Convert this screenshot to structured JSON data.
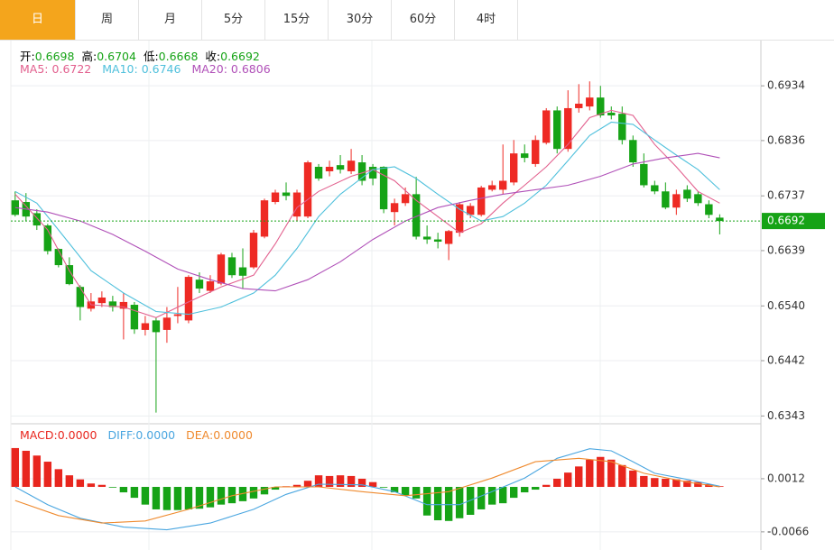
{
  "tabs": [
    "日",
    "周",
    "月",
    "5分",
    "15分",
    "30分",
    "60分",
    "4时"
  ],
  "active_tab": 0,
  "chart_data": [
    {
      "type": "candlestick",
      "info": [
        {
          "label": "开:",
          "value": 0.6698
        },
        {
          "label": "高:",
          "value": 0.6704
        },
        {
          "label": "低:",
          "value": 0.6668
        },
        {
          "label": "收:",
          "value": 0.6692
        }
      ],
      "info_color": "#16a316",
      "up_color": "#ee2a24",
      "down_color": "#16a316",
      "open": [
        0.6729,
        0.6726,
        0.6706,
        0.6684,
        0.6642,
        0.6613,
        0.6574,
        0.6535,
        0.6545,
        0.6548,
        0.6535,
        0.6542,
        0.6497,
        0.6514,
        0.6497,
        0.6522,
        0.6514,
        0.6587,
        0.6567,
        0.658,
        0.6627,
        0.6609,
        0.6609,
        0.6664,
        0.6726,
        0.6743,
        0.67,
        0.67,
        0.6789,
        0.6781,
        0.6792,
        0.6781,
        0.6797,
        0.6789,
        0.6789,
        0.6708,
        0.6724,
        0.674,
        0.6664,
        0.6659,
        0.6651,
        0.6671,
        0.6703,
        0.6703,
        0.6748,
        0.6748,
        0.6761,
        0.6813,
        0.6794,
        0.6832,
        0.689,
        0.6821,
        0.6894,
        0.6897,
        0.6913,
        0.6886,
        0.6884,
        0.6837,
        0.6794,
        0.6756,
        0.6745,
        0.6716,
        0.6748,
        0.674,
        0.6722,
        0.6698
      ],
      "high": [
        0.6745,
        0.6742,
        0.6713,
        0.6687,
        0.6643,
        0.6627,
        0.6577,
        0.6563,
        0.6566,
        0.6558,
        0.6563,
        0.6547,
        0.6522,
        0.6519,
        0.6538,
        0.6574,
        0.6595,
        0.66,
        0.6595,
        0.6635,
        0.6635,
        0.6643,
        0.6676,
        0.6732,
        0.6748,
        0.6761,
        0.6748,
        0.68,
        0.6794,
        0.68,
        0.681,
        0.6821,
        0.681,
        0.6794,
        0.679,
        0.6732,
        0.6752,
        0.6771,
        0.6684,
        0.6671,
        0.6676,
        0.6726,
        0.6724,
        0.6755,
        0.6764,
        0.6829,
        0.6837,
        0.6829,
        0.6845,
        0.6894,
        0.6897,
        0.6926,
        0.6937,
        0.6942,
        0.6934,
        0.6897,
        0.6897,
        0.6845,
        0.6813,
        0.6764,
        0.6761,
        0.6748,
        0.6756,
        0.6745,
        0.6729,
        0.6704
      ],
      "low": [
        0.67,
        0.6692,
        0.6676,
        0.6632,
        0.6609,
        0.6577,
        0.6514,
        0.653,
        0.6538,
        0.653,
        0.648,
        0.649,
        0.6487,
        0.6349,
        0.6474,
        0.6509,
        0.6509,
        0.6563,
        0.6563,
        0.6577,
        0.659,
        0.6571,
        0.6606,
        0.6661,
        0.6722,
        0.6729,
        0.6692,
        0.6697,
        0.6764,
        0.6772,
        0.6777,
        0.6776,
        0.6756,
        0.6756,
        0.6706,
        0.6684,
        0.6719,
        0.6659,
        0.6651,
        0.6643,
        0.6622,
        0.6664,
        0.6697,
        0.67,
        0.6745,
        0.674,
        0.6756,
        0.6797,
        0.6789,
        0.6829,
        0.6813,
        0.6816,
        0.6886,
        0.689,
        0.6877,
        0.6874,
        0.6829,
        0.6789,
        0.6752,
        0.674,
        0.6713,
        0.6703,
        0.6726,
        0.6719,
        0.6697,
        0.6668
      ],
      "close": [
        0.6703,
        0.67,
        0.6684,
        0.6638,
        0.6613,
        0.6579,
        0.6538,
        0.6548,
        0.6555,
        0.6538,
        0.6547,
        0.6498,
        0.6509,
        0.6493,
        0.6519,
        0.6525,
        0.6592,
        0.6571,
        0.6584,
        0.6632,
        0.6595,
        0.6594,
        0.6671,
        0.6729,
        0.6743,
        0.6737,
        0.6743,
        0.6797,
        0.6768,
        0.6789,
        0.6784,
        0.68,
        0.6764,
        0.6768,
        0.6713,
        0.6724,
        0.674,
        0.6664,
        0.6659,
        0.6655,
        0.6674,
        0.6722,
        0.6719,
        0.6752,
        0.6756,
        0.6764,
        0.6813,
        0.6805,
        0.6837,
        0.689,
        0.6821,
        0.6894,
        0.6902,
        0.6913,
        0.6881,
        0.6881,
        0.6837,
        0.6797,
        0.6756,
        0.6745,
        0.6716,
        0.674,
        0.6732,
        0.6724,
        0.6703,
        0.6692
      ],
      "series": [
        {
          "name": "MA5:",
          "label_value": 0.6722,
          "color": "#e2608e",
          "x": [
            0,
            3,
            5,
            7,
            10,
            13,
            16,
            19,
            22,
            24,
            26,
            28,
            31,
            33,
            35,
            37,
            39,
            41,
            43,
            45,
            47,
            49,
            51,
            53,
            55,
            57,
            59,
            61,
            63,
            65
          ],
          "values": [
            0.674,
            0.6676,
            0.6603,
            0.6542,
            0.6538,
            0.6519,
            0.6547,
            0.6574,
            0.6595,
            0.6651,
            0.6716,
            0.6745,
            0.6772,
            0.6784,
            0.6764,
            0.6729,
            0.67,
            0.6671,
            0.6687,
            0.6724,
            0.6756,
            0.6789,
            0.6829,
            0.6877,
            0.689,
            0.6881,
            0.6829,
            0.6789,
            0.6745,
            0.6724
          ]
        },
        {
          "name": "MA10:",
          "label_value": 0.6746,
          "color": "#4fc0dc",
          "x": [
            0,
            2,
            4,
            7,
            10,
            13,
            16,
            19,
            22,
            24,
            26,
            28,
            30,
            33,
            35,
            37,
            39,
            41,
            43,
            45,
            47,
            49,
            51,
            53,
            55,
            57,
            59,
            61,
            63,
            65
          ],
          "values": [
            0.6745,
            0.6724,
            0.6676,
            0.6603,
            0.6563,
            0.653,
            0.6525,
            0.6538,
            0.6563,
            0.6595,
            0.6643,
            0.67,
            0.674,
            0.6784,
            0.6789,
            0.6768,
            0.674,
            0.6713,
            0.6692,
            0.67,
            0.6724,
            0.6756,
            0.68,
            0.6845,
            0.6869,
            0.6865,
            0.6837,
            0.681,
            0.6784,
            0.6748
          ]
        },
        {
          "name": "MA20:",
          "label_value": 0.6806,
          "color": "#b050b8",
          "x": [
            0,
            3,
            6,
            9,
            12,
            15,
            18,
            21,
            24,
            27,
            30,
            33,
            36,
            39,
            42,
            45,
            48,
            51,
            54,
            57,
            60,
            63,
            65
          ],
          "values": [
            0.6716,
            0.6708,
            0.6692,
            0.6668,
            0.6638,
            0.6606,
            0.6587,
            0.6571,
            0.6567,
            0.6587,
            0.6619,
            0.6659,
            0.6692,
            0.6716,
            0.6729,
            0.674,
            0.6748,
            0.6756,
            0.6772,
            0.6794,
            0.6805,
            0.6813,
            0.6805
          ]
        }
      ],
      "current": 0.6692,
      "current_color": "#16a316",
      "xlim": [
        -0.4,
        68.8
      ],
      "ylim": [
        0.6329,
        0.7015
      ],
      "yticks": [
        0.6934,
        0.6836,
        0.6737,
        0.6639,
        {
          "value": 0.654,
          "label": "0.6540"
        },
        0.6442,
        0.6343
      ],
      "grid": true
    },
    {
      "type": "macd",
      "bars": {
        "name": "MACD:",
        "value_label": "0.0000",
        "color": "#e8261e",
        "negative_color": "#16a316",
        "values": [
          0.0057,
          0.0053,
          0.0046,
          0.0037,
          0.0026,
          0.0017,
          0.0011,
          0.0005,
          0.0003,
          -0.0001,
          -0.0008,
          -0.0016,
          -0.0026,
          -0.0033,
          -0.0034,
          -0.0034,
          -0.0033,
          -0.0032,
          -0.003,
          -0.0026,
          -0.0024,
          -0.0021,
          -0.0017,
          -0.0011,
          -0.0004,
          0.0001,
          0.0003,
          0.0009,
          0.0017,
          0.0016,
          0.0017,
          0.0016,
          0.0012,
          0.0007,
          -0.0001,
          -0.0008,
          -0.0013,
          -0.0017,
          -0.0042,
          -0.0049,
          -0.005,
          -0.0046,
          -0.0041,
          -0.0033,
          -0.0026,
          -0.0024,
          -0.0016,
          -0.0008,
          -0.0004,
          0.0003,
          0.0012,
          0.0021,
          0.003,
          0.004,
          0.0044,
          0.004,
          0.0032,
          0.0024,
          0.0016,
          0.0013,
          0.0012,
          0.0011,
          0.0009,
          0.0007,
          0.0004,
          0.0001
        ]
      },
      "series": [
        {
          "name": "DIFF:",
          "value_label": "0.0000",
          "color": "#4aa6e0",
          "x": [
            0,
            3,
            6,
            10,
            14,
            18,
            22,
            25,
            28,
            32,
            35,
            38,
            41,
            44,
            47,
            50,
            53,
            55,
            57,
            59,
            62,
            65
          ],
          "values": [
            0,
            -0.0026,
            -0.0046,
            -0.0059,
            -0.0063,
            -0.0053,
            -0.0033,
            -0.0011,
            0.0004,
            0.0003,
            -0.0007,
            -0.0026,
            -0.0026,
            -0.0007,
            0.0013,
            0.0042,
            0.0056,
            0.0053,
            0.0037,
            0.002,
            0.0011,
            0.0001
          ]
        },
        {
          "name": "DEA:",
          "value_label": "0.0000",
          "color": "#ef8a2e",
          "x": [
            0,
            4,
            8,
            12,
            16,
            20,
            24,
            28,
            32,
            36,
            40,
            44,
            48,
            52,
            55,
            58,
            62,
            65
          ],
          "values": [
            -0.002,
            -0.0042,
            -0.0053,
            -0.005,
            -0.0033,
            -0.0013,
            0,
            0,
            -0.0007,
            -0.0013,
            -0.0007,
            0.0013,
            0.0037,
            0.0042,
            0.0037,
            0.002,
            0.0007,
            0
          ]
        }
      ],
      "xlim": [
        -0.4,
        68.8
      ],
      "ylim": [
        -0.0086,
        0.009
      ],
      "yticks": [
        0.0012,
        -0.0066
      ],
      "grid": true
    }
  ]
}
